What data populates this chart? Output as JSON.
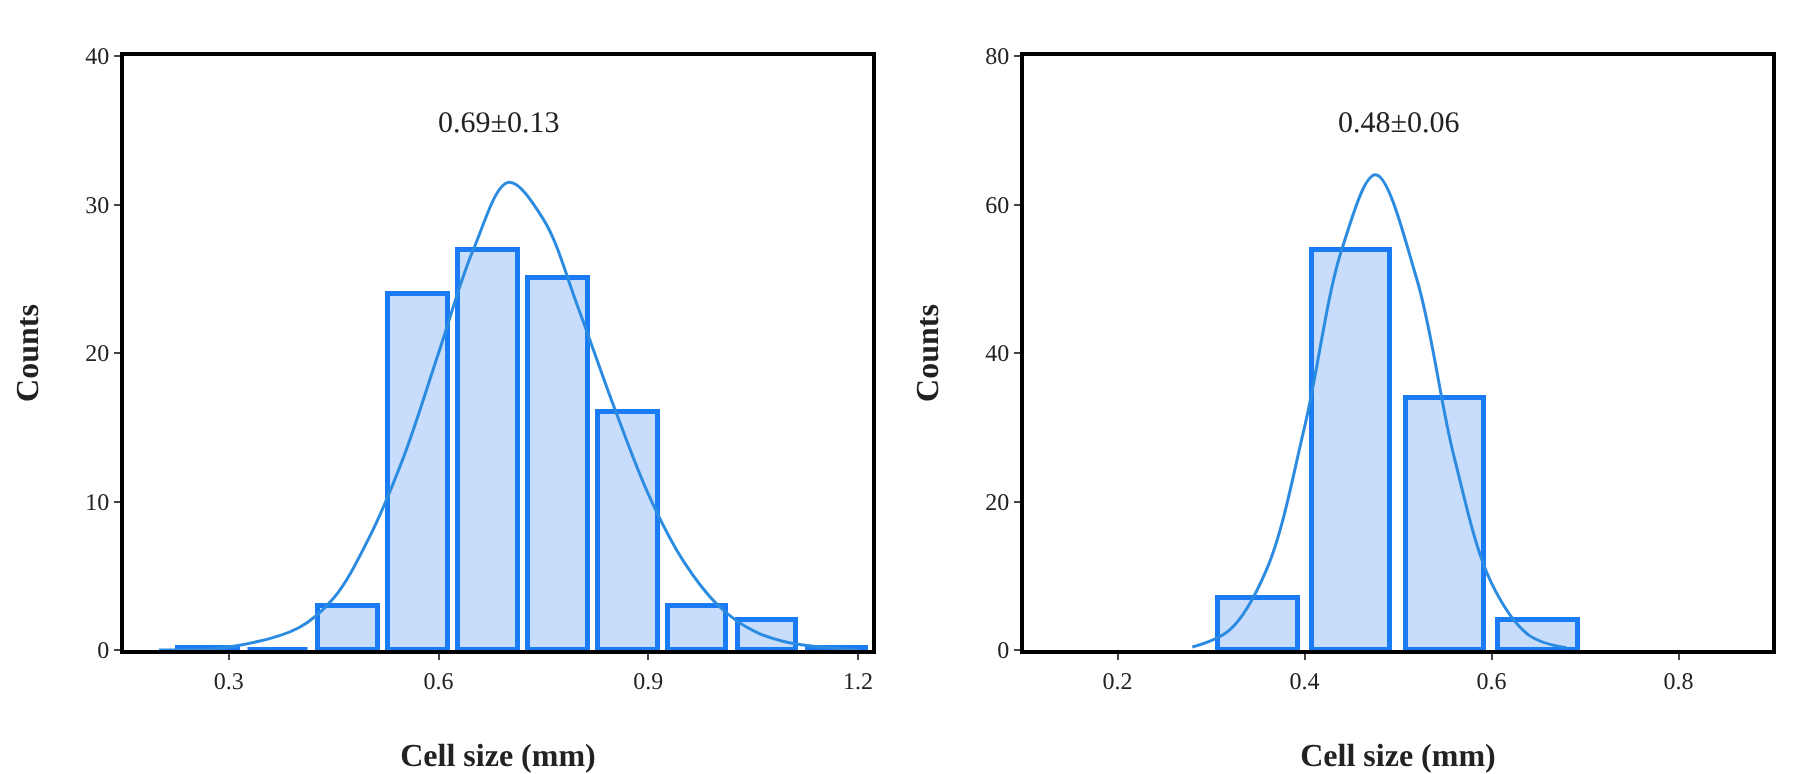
{
  "chart_data": [
    {
      "type": "histogram",
      "xlabel": "Cell size (mm)",
      "ylabel": "Counts",
      "annotations": [
        "0.69±0.13"
      ],
      "xlim": [
        0.15,
        1.22
      ],
      "xticks": [
        0.3,
        0.6,
        0.9,
        1.2
      ],
      "ylim": [
        0,
        40
      ],
      "yticks": [
        0,
        10,
        20,
        30,
        40
      ],
      "marker": "none",
      "series": [
        {
          "color": "#1a7cf5",
          "bins": [
            0.22,
            0.32,
            0.42,
            0.52,
            0.62,
            0.72,
            0.82,
            0.92,
            1.02,
            1.12,
            1.22
          ],
          "values": [
            0.2,
            0,
            3,
            24,
            27,
            25,
            16,
            3,
            2,
            0.2
          ]
        },
        {
          "type": "line",
          "color": "#2a8be0",
          "x": [
            0.2,
            0.3,
            0.4,
            0.45,
            0.5,
            0.55,
            0.6,
            0.65,
            0.7,
            0.75,
            0.8,
            0.85,
            0.9,
            0.95,
            1.0,
            1.05,
            1.1,
            1.2
          ],
          "values": [
            0,
            0.2,
            1.5,
            3.5,
            7.5,
            13,
            20,
            27,
            31.5,
            29,
            23,
            16.5,
            10.5,
            6,
            3,
            1.3,
            0.5,
            0
          ]
        }
      ]
    },
    {
      "type": "histogram",
      "xlabel": "Cell size (mm)",
      "ylabel": "Counts",
      "annotations": [
        "0.48±0.06"
      ],
      "xlim": [
        0.1,
        0.9
      ],
      "xticks": [
        0.2,
        0.4,
        0.6,
        0.8
      ],
      "ylim": [
        0,
        80
      ],
      "yticks": [
        0,
        20,
        40,
        60,
        80
      ],
      "marker": "none",
      "series": [
        {
          "color": "#1a7cf5",
          "bins": [
            0.3,
            0.4,
            0.5,
            0.6,
            0.7
          ],
          "values": [
            7,
            54,
            34,
            4
          ]
        },
        {
          "type": "line",
          "color": "#2a8be0",
          "x": [
            0.28,
            0.32,
            0.36,
            0.4,
            0.44,
            0.476,
            0.52,
            0.56,
            0.6,
            0.64,
            0.68
          ],
          "values": [
            0.4,
            2.7,
            11,
            30,
            54,
            64,
            50,
            26,
            9,
            2,
            0.3
          ]
        }
      ]
    }
  ]
}
